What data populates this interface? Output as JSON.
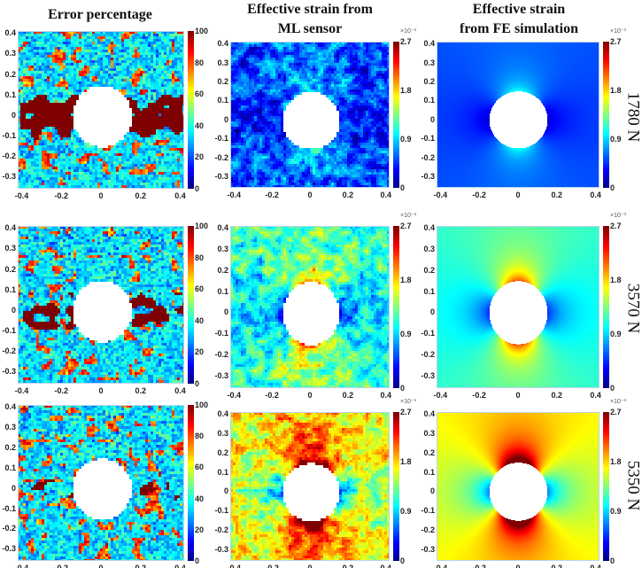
{
  "chart_data": {
    "type": "heatmap",
    "column_titles": [
      [
        "Error percentage"
      ],
      [
        "Effective strain from",
        "ML sensor"
      ],
      [
        "Effective strain",
        "from FE simulation"
      ]
    ],
    "row_labels": [
      "1780 N",
      "3570 N",
      "5350 N"
    ],
    "loads_N": [
      1780,
      3570,
      5350
    ],
    "x_ticks": [
      "-0.4",
      "-0.2",
      "0",
      "0.2",
      "0.4"
    ],
    "x_tick_values": [
      -0.4,
      -0.2,
      0,
      0.2,
      0.4
    ],
    "y_ticks": [
      "0.4",
      "0.3",
      "0.2",
      "0.1",
      "0",
      "-0.1",
      "-0.2",
      "-0.3"
    ],
    "y_tick_values": [
      0.4,
      0.3,
      0.2,
      0.1,
      0,
      -0.1,
      -0.2,
      -0.3
    ],
    "xlim": [
      -0.42,
      0.42
    ],
    "ylim": [
      -0.36,
      0.41
    ],
    "hole_radius": 0.15,
    "colorbars": {
      "error": {
        "ticks": [
          "100",
          "80",
          "60",
          "40",
          "20",
          "0"
        ],
        "values": [
          100,
          80,
          60,
          40,
          20,
          0
        ],
        "range": [
          0,
          100
        ],
        "unit_label": ""
      },
      "strain": {
        "ticks": [
          "2.7",
          "1.8",
          "0.9",
          "0"
        ],
        "values": [
          2.7,
          1.8,
          0.9,
          0
        ],
        "range": [
          0,
          2.7
        ],
        "unit_label": "×10⁻³"
      }
    },
    "colormap": "jet",
    "estimated_far_field_strain_e-3": [
      0.55,
      1.15,
      1.7
    ],
    "estimated_error_cluster_intensity": [
      1.0,
      0.7,
      0.4
    ]
  }
}
